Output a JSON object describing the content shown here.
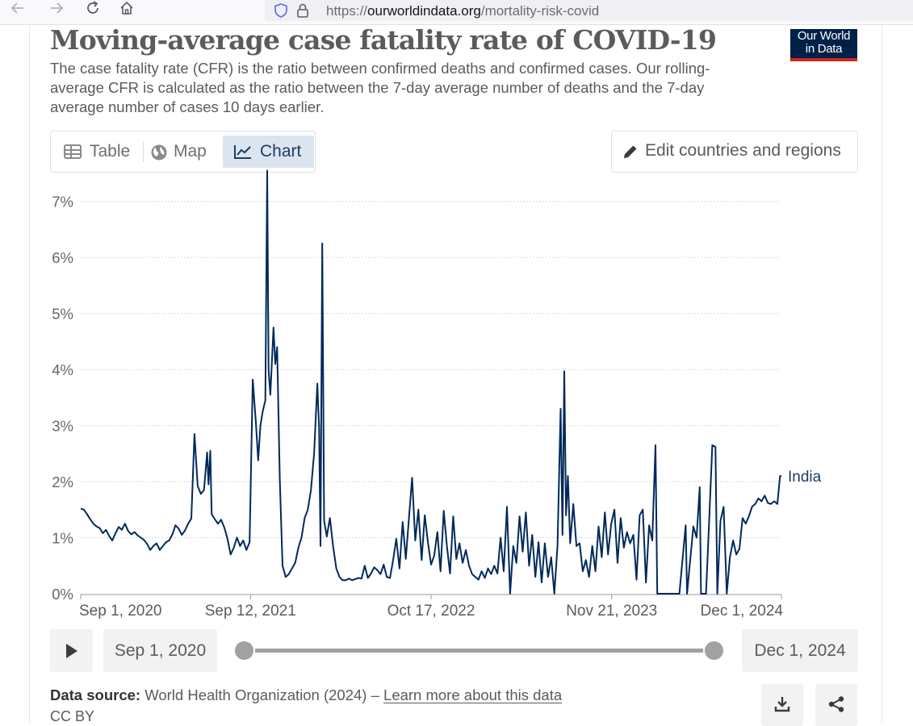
{
  "browser": {
    "url_prefix": "https://",
    "url_domain": "ourworldindata.org",
    "url_path": "/mortality-risk-covid",
    "back_icon": "back-arrow-icon",
    "forward_icon": "forward-arrow-icon",
    "reload_icon": "reload-icon",
    "home_icon": "home-icon"
  },
  "header": {
    "title": "Moving-average case fatality rate of COVID-19",
    "subtitle": "The case fatality rate (CFR) is the ratio between confirmed deaths and confirmed cases. Our rolling-average CFR is calculated as the ratio between the 7-day average number of deaths and the 7-day average number of cases 10 days earlier.",
    "logo_line1": "Our World",
    "logo_line2": "in Data"
  },
  "tabs": [
    {
      "label": "Table",
      "icon": "table-icon",
      "active": false
    },
    {
      "label": "Map",
      "icon": "globe-icon",
      "active": false
    },
    {
      "label": "Chart",
      "icon": "line-chart-icon",
      "active": true
    }
  ],
  "edit_button": {
    "label": "Edit countries and regions",
    "icon": "pencil-icon"
  },
  "chart_data": {
    "type": "line",
    "title": "Moving-average case fatality rate of COVID-19",
    "xlabel": "",
    "ylabel": "",
    "y_tick_labels": [
      "0%",
      "1%",
      "2%",
      "3%",
      "4%",
      "5%",
      "6%",
      "7%"
    ],
    "y_ticks": [
      0,
      1,
      2,
      3,
      4,
      5,
      6,
      7
    ],
    "ylim": [
      0,
      7.6
    ],
    "x_tick_labels": [
      "Sep 1, 2020",
      "Sep 12, 2021",
      "Oct 17, 2022",
      "Nov 21, 2023",
      "Dec 1, 2024"
    ],
    "x_ticks": [
      "2020-09-01",
      "2021-09-12",
      "2022-10-17",
      "2023-11-21",
      "2024-12-01"
    ],
    "xlim": [
      "2020-09-01",
      "2024-12-01"
    ],
    "grid": "horizontal dotted",
    "line_color": "#00295b",
    "series": [
      {
        "name": "India",
        "points": [
          [
            "2020-09-01",
            1.52
          ],
          [
            "2020-09-08",
            1.5
          ],
          [
            "2020-09-15",
            1.42
          ],
          [
            "2020-09-22",
            1.33
          ],
          [
            "2020-09-29",
            1.25
          ],
          [
            "2020-10-06",
            1.2
          ],
          [
            "2020-10-13",
            1.17
          ],
          [
            "2020-10-20",
            1.08
          ],
          [
            "2020-10-27",
            1.14
          ],
          [
            "2020-11-03",
            1.03
          ],
          [
            "2020-11-10",
            0.95
          ],
          [
            "2020-11-17",
            1.08
          ],
          [
            "2020-11-24",
            1.19
          ],
          [
            "2020-12-01",
            1.14
          ],
          [
            "2020-12-08",
            1.25
          ],
          [
            "2020-12-15",
            1.12
          ],
          [
            "2020-12-22",
            1.06
          ],
          [
            "2020-12-29",
            1.1
          ],
          [
            "2021-01-05",
            1.04
          ],
          [
            "2021-01-12",
            1.0
          ],
          [
            "2021-01-19",
            0.96
          ],
          [
            "2021-01-26",
            0.89
          ],
          [
            "2021-02-02",
            0.78
          ],
          [
            "2021-02-09",
            0.85
          ],
          [
            "2021-02-16",
            0.9
          ],
          [
            "2021-02-23",
            0.78
          ],
          [
            "2021-03-02",
            0.85
          ],
          [
            "2021-03-09",
            0.92
          ],
          [
            "2021-03-16",
            0.95
          ],
          [
            "2021-03-23",
            1.06
          ],
          [
            "2021-03-30",
            1.22
          ],
          [
            "2021-04-06",
            1.16
          ],
          [
            "2021-04-13",
            1.05
          ],
          [
            "2021-04-20",
            1.13
          ],
          [
            "2021-04-27",
            1.25
          ],
          [
            "2021-05-04",
            1.34
          ],
          [
            "2021-05-11",
            2.85
          ],
          [
            "2021-05-18",
            1.92
          ],
          [
            "2021-05-25",
            1.78
          ],
          [
            "2021-06-01",
            1.85
          ],
          [
            "2021-06-08",
            2.52
          ],
          [
            "2021-06-11",
            1.95
          ],
          [
            "2021-06-15",
            2.55
          ],
          [
            "2021-06-18",
            1.42
          ],
          [
            "2021-06-25",
            1.33
          ],
          [
            "2021-07-02",
            1.25
          ],
          [
            "2021-07-09",
            1.32
          ],
          [
            "2021-07-16",
            1.18
          ],
          [
            "2021-07-23",
            0.98
          ],
          [
            "2021-07-30",
            0.7
          ],
          [
            "2021-08-06",
            0.82
          ],
          [
            "2021-08-13",
            1.0
          ],
          [
            "2021-08-20",
            0.85
          ],
          [
            "2021-08-27",
            0.95
          ],
          [
            "2021-09-03",
            0.78
          ],
          [
            "2021-09-10",
            0.92
          ],
          [
            "2021-09-17",
            3.82
          ],
          [
            "2021-09-24",
            3.05
          ],
          [
            "2021-09-29",
            2.38
          ],
          [
            "2021-10-04",
            3.0
          ],
          [
            "2021-10-09",
            3.25
          ],
          [
            "2021-10-15",
            3.45
          ],
          [
            "2021-10-19",
            7.55
          ],
          [
            "2021-10-22",
            4.0
          ],
          [
            "2021-10-26",
            3.55
          ],
          [
            "2021-11-02",
            4.75
          ],
          [
            "2021-11-06",
            4.1
          ],
          [
            "2021-11-10",
            4.4
          ],
          [
            "2021-11-16",
            2.05
          ],
          [
            "2021-11-22",
            0.5
          ],
          [
            "2021-11-29",
            0.3
          ],
          [
            "2021-12-06",
            0.35
          ],
          [
            "2021-12-13",
            0.45
          ],
          [
            "2021-12-20",
            0.55
          ],
          [
            "2021-12-27",
            0.82
          ],
          [
            "2022-01-03",
            1.0
          ],
          [
            "2022-01-10",
            1.35
          ],
          [
            "2022-01-17",
            1.5
          ],
          [
            "2022-01-24",
            1.85
          ],
          [
            "2022-01-31",
            2.5
          ],
          [
            "2022-02-07",
            3.75
          ],
          [
            "2022-02-11",
            2.95
          ],
          [
            "2022-02-14",
            0.85
          ],
          [
            "2022-02-18",
            6.25
          ],
          [
            "2022-02-22",
            1.3
          ],
          [
            "2022-02-28",
            1.02
          ],
          [
            "2022-03-07",
            1.35
          ],
          [
            "2022-03-14",
            0.85
          ],
          [
            "2022-03-21",
            0.45
          ],
          [
            "2022-03-28",
            0.3
          ],
          [
            "2022-04-04",
            0.24
          ],
          [
            "2022-04-11",
            0.24
          ],
          [
            "2022-04-18",
            0.27
          ],
          [
            "2022-04-25",
            0.24
          ],
          [
            "2022-05-02",
            0.26
          ],
          [
            "2022-05-09",
            0.28
          ],
          [
            "2022-05-16",
            0.27
          ],
          [
            "2022-05-23",
            0.5
          ],
          [
            "2022-05-30",
            0.28
          ],
          [
            "2022-06-06",
            0.36
          ],
          [
            "2022-06-13",
            0.47
          ],
          [
            "2022-06-20",
            0.42
          ],
          [
            "2022-06-27",
            0.35
          ],
          [
            "2022-07-04",
            0.52
          ],
          [
            "2022-07-11",
            0.3
          ],
          [
            "2022-07-18",
            0.28
          ],
          [
            "2022-07-25",
            0.6
          ],
          [
            "2022-08-01",
            0.98
          ],
          [
            "2022-08-08",
            0.45
          ],
          [
            "2022-08-15",
            1.28
          ],
          [
            "2022-08-22",
            0.62
          ],
          [
            "2022-08-29",
            1.35
          ],
          [
            "2022-09-05",
            2.07
          ],
          [
            "2022-09-12",
            0.95
          ],
          [
            "2022-09-19",
            1.5
          ],
          [
            "2022-09-26",
            0.6
          ],
          [
            "2022-10-03",
            1.4
          ],
          [
            "2022-10-10",
            0.92
          ],
          [
            "2022-10-17",
            0.52
          ],
          [
            "2022-10-24",
            0.68
          ],
          [
            "2022-10-31",
            1.1
          ],
          [
            "2022-11-07",
            0.4
          ],
          [
            "2022-11-14",
            1.48
          ],
          [
            "2022-11-21",
            0.85
          ],
          [
            "2022-11-28",
            0.36
          ],
          [
            "2022-12-05",
            1.38
          ],
          [
            "2022-12-12",
            0.62
          ],
          [
            "2022-12-19",
            0.9
          ],
          [
            "2022-12-26",
            0.55
          ],
          [
            "2023-01-02",
            0.78
          ],
          [
            "2023-01-09",
            0.5
          ],
          [
            "2023-01-16",
            0.35
          ],
          [
            "2023-01-23",
            0.3
          ],
          [
            "2023-01-30",
            0.25
          ],
          [
            "2023-02-06",
            0.4
          ],
          [
            "2023-02-13",
            0.28
          ],
          [
            "2023-02-20",
            0.45
          ],
          [
            "2023-02-27",
            0.35
          ],
          [
            "2023-03-06",
            0.5
          ],
          [
            "2023-03-13",
            0.36
          ],
          [
            "2023-03-20",
            1.0
          ],
          [
            "2023-03-27",
            0.4
          ],
          [
            "2023-04-03",
            1.55
          ],
          [
            "2023-04-10",
            0.0
          ],
          [
            "2023-04-17",
            0.85
          ],
          [
            "2023-04-24",
            0.55
          ],
          [
            "2023-05-01",
            1.38
          ],
          [
            "2023-05-08",
            0.75
          ],
          [
            "2023-05-15",
            1.45
          ],
          [
            "2023-05-22",
            0.5
          ],
          [
            "2023-05-29",
            1.05
          ],
          [
            "2023-06-05",
            0.3
          ],
          [
            "2023-06-12",
            0.92
          ],
          [
            "2023-06-19",
            0.2
          ],
          [
            "2023-06-26",
            0.9
          ],
          [
            "2023-07-03",
            0.3
          ],
          [
            "2023-07-10",
            0.65
          ],
          [
            "2023-07-17",
            0.0
          ],
          [
            "2023-07-24",
            0.85
          ],
          [
            "2023-07-31",
            3.3
          ],
          [
            "2023-08-04",
            1.05
          ],
          [
            "2023-08-08",
            3.97
          ],
          [
            "2023-08-12",
            1.4
          ],
          [
            "2023-08-16",
            2.1
          ],
          [
            "2023-08-21",
            0.9
          ],
          [
            "2023-08-28",
            1.6
          ],
          [
            "2023-09-04",
            0.85
          ],
          [
            "2023-09-11",
            0.9
          ],
          [
            "2023-09-18",
            0.4
          ],
          [
            "2023-09-25",
            0.6
          ],
          [
            "2023-10-02",
            0.3
          ],
          [
            "2023-10-09",
            0.85
          ],
          [
            "2023-10-16",
            0.4
          ],
          [
            "2023-10-23",
            1.2
          ],
          [
            "2023-10-30",
            0.65
          ],
          [
            "2023-11-06",
            1.45
          ],
          [
            "2023-11-13",
            0.7
          ],
          [
            "2023-11-20",
            1.25
          ],
          [
            "2023-11-27",
            1.5
          ],
          [
            "2023-12-04",
            0.55
          ],
          [
            "2023-12-11",
            1.35
          ],
          [
            "2023-12-18",
            0.82
          ],
          [
            "2023-12-25",
            1.1
          ],
          [
            "2024-01-01",
            0.9
          ],
          [
            "2024-01-08",
            1.05
          ],
          [
            "2024-01-15",
            0.25
          ],
          [
            "2024-01-22",
            1.4
          ],
          [
            "2024-01-29",
            1.5
          ],
          [
            "2024-02-05",
            0.2
          ],
          [
            "2024-02-12",
            1.22
          ],
          [
            "2024-02-19",
            0.95
          ],
          [
            "2024-02-26",
            2.65
          ],
          [
            "2024-03-01",
            0.0
          ],
          [
            "2024-03-15",
            0.0
          ],
          [
            "2024-04-05",
            0.0
          ],
          [
            "2024-04-19",
            0.0
          ],
          [
            "2024-05-03",
            1.22
          ],
          [
            "2024-05-06",
            0.0
          ],
          [
            "2024-05-20",
            1.2
          ],
          [
            "2024-05-27",
            1.0
          ],
          [
            "2024-06-03",
            1.9
          ],
          [
            "2024-06-06",
            0.0
          ],
          [
            "2024-06-17",
            0.0
          ],
          [
            "2024-06-24",
            1.3
          ],
          [
            "2024-07-01",
            2.65
          ],
          [
            "2024-07-08",
            2.62
          ],
          [
            "2024-07-12",
            0.0
          ],
          [
            "2024-07-19",
            1.3
          ],
          [
            "2024-07-26",
            1.55
          ],
          [
            "2024-08-02",
            0.0
          ],
          [
            "2024-08-09",
            0.65
          ],
          [
            "2024-08-16",
            0.95
          ],
          [
            "2024-08-23",
            0.7
          ],
          [
            "2024-08-30",
            0.8
          ],
          [
            "2024-09-06",
            1.35
          ],
          [
            "2024-09-13",
            1.25
          ],
          [
            "2024-09-20",
            1.38
          ],
          [
            "2024-09-27",
            1.55
          ],
          [
            "2024-10-04",
            1.6
          ],
          [
            "2024-10-11",
            1.7
          ],
          [
            "2024-10-18",
            1.65
          ],
          [
            "2024-10-25",
            1.75
          ],
          [
            "2024-11-01",
            1.62
          ],
          [
            "2024-11-08",
            1.6
          ],
          [
            "2024-11-15",
            1.65
          ],
          [
            "2024-11-22",
            1.6
          ],
          [
            "2024-11-28",
            2.1
          ],
          [
            "2024-12-01",
            2.1
          ]
        ]
      }
    ]
  },
  "timeline": {
    "play_icon": "play-icon",
    "start_label": "Sep 1, 2020",
    "end_label": "Dec 1, 2024",
    "start_fraction": 0,
    "end_fraction": 1
  },
  "footer": {
    "source_label": "Data source:",
    "source_text": " World Health Organization (2024) – ",
    "learn_more": "Learn more about this data",
    "license": "CC BY",
    "download_icon": "download-icon",
    "share_icon": "share-icon"
  }
}
